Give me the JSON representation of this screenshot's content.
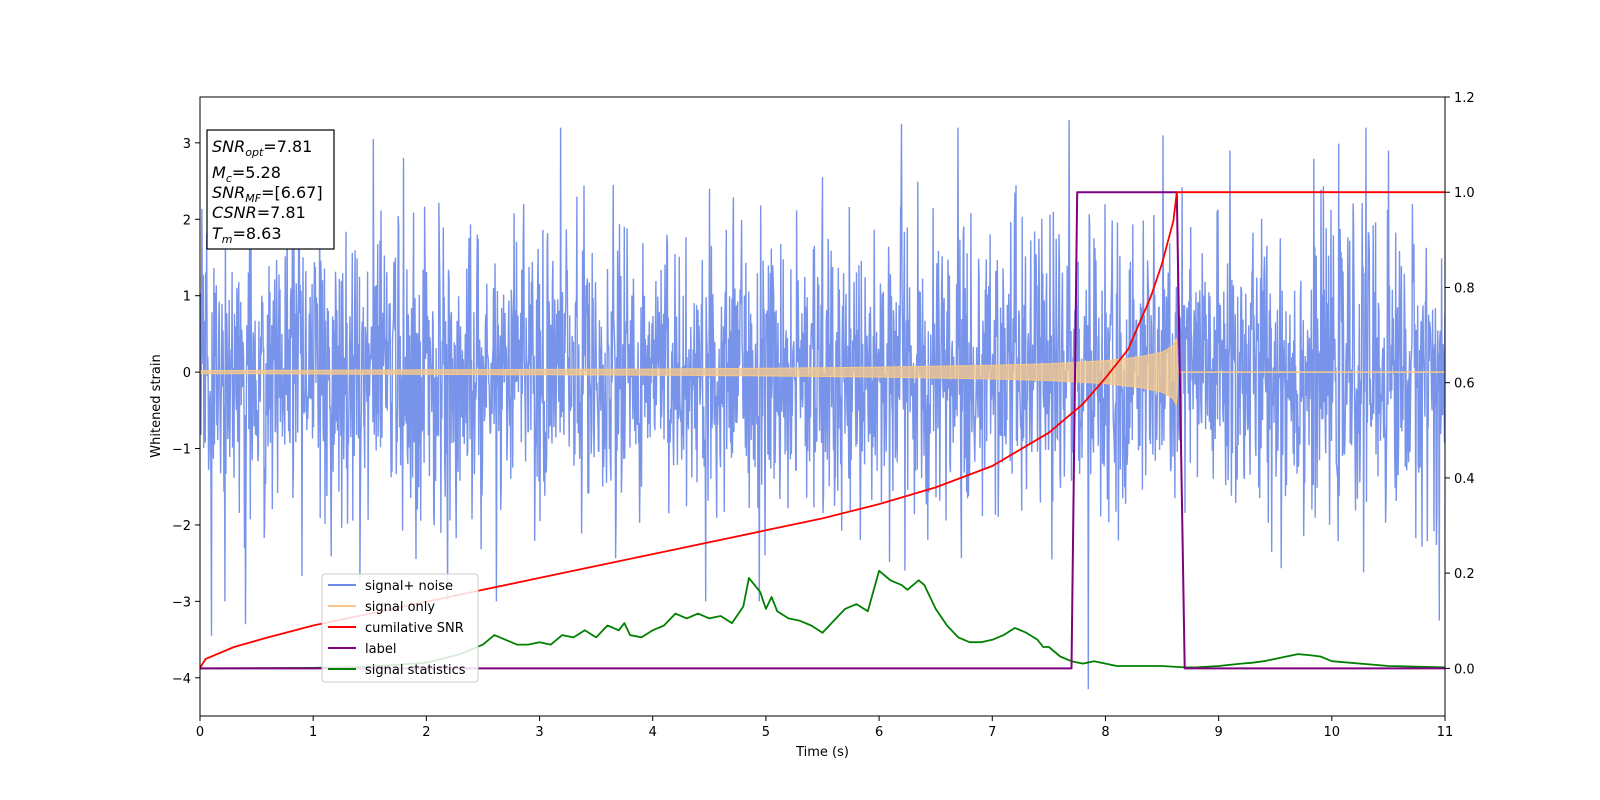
{
  "chart_data": {
    "type": "line",
    "xlabel": "Time (s)",
    "ylabel": "Whitened strain",
    "xlim": [
      0,
      11
    ],
    "ylim": [
      -4.5,
      3.6
    ],
    "y2lim": [
      -0.1,
      1.2
    ],
    "grid": false,
    "x_ticks": [
      "0",
      "1",
      "2",
      "3",
      "4",
      "5",
      "6",
      "7",
      "8",
      "9",
      "10",
      "11"
    ],
    "y_ticks": [
      "3",
      "2",
      "1",
      "0",
      "−1",
      "−2",
      "−3",
      "−4"
    ],
    "y2_ticks": [
      "1.2",
      "1.0",
      "0.8",
      "0.6",
      "0.4",
      "0.2",
      "0.0"
    ],
    "legend_position": "lower-left",
    "info_box": {
      "snr_opt": {
        "label": "SNR",
        "sub": "opt",
        "value": "=7.81"
      },
      "mc": {
        "label": "M",
        "sub": "c",
        "value": "=5.28"
      },
      "snr_mf": {
        "label": "SNR",
        "sub": "MF",
        "value": "=[6.67]"
      },
      "csnr": {
        "label": "CSNR",
        "value": "=7.81"
      },
      "tm": {
        "label": "T",
        "sub": "m",
        "value": "=8.63"
      }
    },
    "series": [
      {
        "name": "signal+ noise",
        "color": "#6d8ae8",
        "axis": "left",
        "noise_band_y": [
          -2.7,
          3.3
        ],
        "peaks_x": [
          0.1,
          0.4,
          1.53,
          1.8,
          2.86,
          3.65,
          4.5,
          5.5,
          6.2,
          7.2,
          7.68,
          7.85,
          9.1,
          10.3,
          10.5,
          10.95
        ],
        "peaks_y": [
          -3.45,
          -3.3,
          3.05,
          2.8,
          2.2,
          2.45,
          2.4,
          2.55,
          3.25,
          2.35,
          3.3,
          -4.15,
          2.9,
          3.2,
          2.9,
          -3.25
        ]
      },
      {
        "name": "signal only",
        "color": "#f6c98a",
        "axis": "left",
        "x": [
          0,
          1,
          2,
          3,
          4,
          5,
          6,
          7,
          7.5,
          8,
          8.3,
          8.5,
          8.6,
          8.63,
          8.64,
          11
        ],
        "amplitude": [
          0.02,
          0.025,
          0.03,
          0.035,
          0.04,
          0.05,
          0.065,
          0.09,
          0.11,
          0.15,
          0.2,
          0.26,
          0.35,
          0.45,
          0,
          0
        ]
      },
      {
        "name": "cumilative SNR",
        "color": "#ff0000",
        "axis": "right",
        "x": [
          0,
          0.05,
          0.3,
          0.6,
          1,
          1.5,
          2,
          2.5,
          3,
          3.5,
          4,
          4.5,
          5,
          5.5,
          6,
          6.5,
          7,
          7.5,
          7.8,
          8,
          8.2,
          8.4,
          8.5,
          8.6,
          8.63,
          11
        ],
        "y": [
          0.001,
          0.02,
          0.045,
          0.065,
          0.09,
          0.115,
          0.14,
          0.165,
          0.19,
          0.215,
          0.24,
          0.265,
          0.29,
          0.315,
          0.345,
          0.38,
          0.425,
          0.495,
          0.555,
          0.61,
          0.67,
          0.78,
          0.85,
          0.94,
          1.0,
          1.0
        ]
      },
      {
        "name": "label",
        "color": "#800080",
        "axis": "right",
        "x": [
          0,
          7.7,
          7.75,
          8.63,
          8.7,
          11
        ],
        "y": [
          0,
          0,
          1,
          1,
          0,
          0
        ]
      },
      {
        "name": "signal statistics",
        "color": "#008000",
        "axis": "right",
        "x": [
          0,
          1,
          1.5,
          2,
          2.3,
          2.5,
          2.6,
          2.7,
          2.8,
          2.9,
          3,
          3.1,
          3.2,
          3.3,
          3.4,
          3.5,
          3.6,
          3.7,
          3.75,
          3.8,
          3.9,
          4,
          4.1,
          4.2,
          4.3,
          4.4,
          4.5,
          4.6,
          4.7,
          4.8,
          4.85,
          4.95,
          5,
          5.05,
          5.1,
          5.2,
          5.3,
          5.4,
          5.5,
          5.6,
          5.7,
          5.8,
          5.9,
          6,
          6.1,
          6.2,
          6.25,
          6.35,
          6.4,
          6.5,
          6.6,
          6.7,
          6.8,
          6.9,
          7,
          7.1,
          7.2,
          7.3,
          7.4,
          7.45,
          7.5,
          7.6,
          7.7,
          7.8,
          7.9,
          8,
          8.1,
          8.3,
          8.5,
          8.7,
          8.8,
          9,
          9.2,
          9.3,
          9.4,
          9.5,
          9.6,
          9.7,
          9.8,
          9.9,
          10,
          10.5,
          11
        ],
        "y": [
          0.0,
          0.001,
          0.004,
          0.012,
          0.03,
          0.05,
          0.07,
          0.06,
          0.05,
          0.05,
          0.055,
          0.05,
          0.07,
          0.065,
          0.08,
          0.065,
          0.09,
          0.08,
          0.095,
          0.07,
          0.065,
          0.08,
          0.09,
          0.115,
          0.105,
          0.115,
          0.105,
          0.11,
          0.095,
          0.13,
          0.19,
          0.16,
          0.125,
          0.15,
          0.12,
          0.105,
          0.1,
          0.09,
          0.075,
          0.1,
          0.125,
          0.135,
          0.12,
          0.205,
          0.185,
          0.175,
          0.165,
          0.185,
          0.175,
          0.125,
          0.09,
          0.065,
          0.055,
          0.055,
          0.06,
          0.07,
          0.085,
          0.075,
          0.06,
          0.045,
          0.045,
          0.025,
          0.015,
          0.01,
          0.015,
          0.01,
          0.005,
          0.005,
          0.005,
          0.002,
          0.002,
          0.005,
          0.01,
          0.012,
          0.015,
          0.02,
          0.025,
          0.03,
          0.028,
          0.025,
          0.015,
          0.005,
          0.002
        ]
      }
    ]
  }
}
